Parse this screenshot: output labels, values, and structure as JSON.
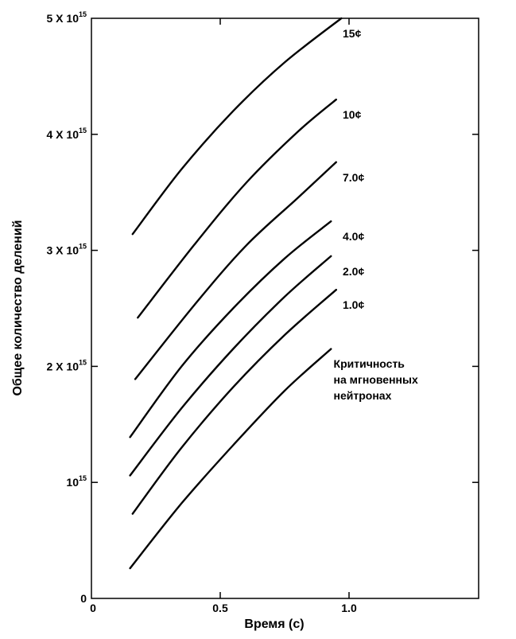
{
  "chart_data": {
    "type": "line",
    "xlabel": "Время (с)",
    "ylabel": "Общее количество делений",
    "xlim": [
      0,
      1.5
    ],
    "ylim": [
      0,
      5000000000000000.0
    ],
    "x_ticks": [
      {
        "value": 0,
        "label": "0"
      },
      {
        "value": 0.5,
        "label": "0.5"
      },
      {
        "value": 1.0,
        "label": "1.0"
      }
    ],
    "y_ticks": [
      {
        "value": 0,
        "base": "0",
        "exp": ""
      },
      {
        "value": 1000000000000000.0,
        "base": "10",
        "exp": "15"
      },
      {
        "value": 2000000000000000.0,
        "base": "2 X 10",
        "exp": "15"
      },
      {
        "value": 3000000000000000.0,
        "base": "3 X 10",
        "exp": "15"
      },
      {
        "value": 4000000000000000.0,
        "base": "4 X 10",
        "exp": "15"
      },
      {
        "value": 5000000000000000.0,
        "base": "5 X 10",
        "exp": "15"
      }
    ],
    "annotation": [
      "Критичность",
      "на мгновенных",
      "нейтронах"
    ],
    "series": [
      {
        "name": "15¢",
        "x": [
          0.16,
          0.35,
          0.55,
          0.75,
          0.97
        ],
        "y": [
          3140000000000000.0,
          3700000000000000.0,
          4200000000000000.0,
          4620000000000000.0,
          5000000000000000.0
        ]
      },
      {
        "name": "10¢",
        "x": [
          0.18,
          0.4,
          0.6,
          0.8,
          0.95
        ],
        "y": [
          2420000000000000.0,
          3050000000000000.0,
          3580000000000000.0,
          4020000000000000.0,
          4300000000000000.0
        ]
      },
      {
        "name": "7.0¢",
        "x": [
          0.17,
          0.4,
          0.6,
          0.8,
          0.95
        ],
        "y": [
          1890000000000000.0,
          2530000000000000.0,
          3040000000000000.0,
          3450000000000000.0,
          3760000000000000.0
        ]
      },
      {
        "name": "4.0¢",
        "x": [
          0.15,
          0.35,
          0.55,
          0.75,
          0.93
        ],
        "y": [
          1390000000000000.0,
          2000000000000000.0,
          2500000000000000.0,
          2930000000000000.0,
          3250000000000000.0
        ]
      },
      {
        "name": "2.0¢",
        "x": [
          0.15,
          0.35,
          0.55,
          0.75,
          0.93
        ],
        "y": [
          1060000000000000.0,
          1640000000000000.0,
          2150000000000000.0,
          2600000000000000.0,
          2950000000000000.0
        ]
      },
      {
        "name": "1.0¢",
        "x": [
          0.16,
          0.35,
          0.55,
          0.75,
          0.95
        ],
        "y": [
          730000000000000.0,
          1300000000000000.0,
          1820000000000000.0,
          2270000000000000.0,
          2660000000000000.0
        ]
      },
      {
        "name": "",
        "x": [
          0.15,
          0.35,
          0.55,
          0.75,
          0.93
        ],
        "y": [
          260000000000000.0,
          820000000000000.0,
          1320000000000000.0,
          1790000000000000.0,
          2150000000000000.0
        ]
      }
    ]
  }
}
